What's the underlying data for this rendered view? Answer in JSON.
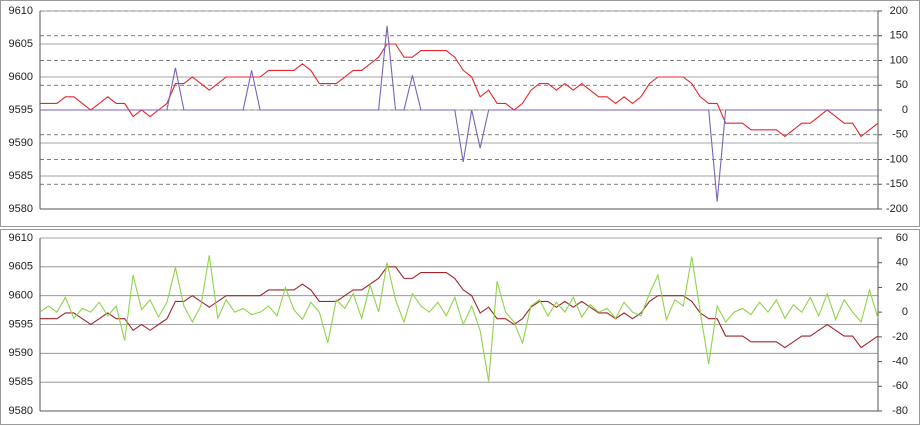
{
  "chart_data": [
    {
      "type": "line",
      "categories": [
        null,
        null,
        null,
        null,
        null,
        null,
        null,
        null,
        null,
        null,
        null,
        null,
        null,
        null,
        null,
        null,
        null,
        null,
        null,
        null,
        null,
        null,
        null,
        null,
        null,
        null,
        null,
        null,
        null,
        null,
        null,
        null,
        null,
        null,
        null,
        null,
        null,
        null,
        null,
        null,
        null,
        null,
        null,
        null,
        null,
        null,
        null,
        null,
        null,
        null,
        null,
        null,
        null,
        null,
        null,
        null,
        null,
        null,
        null,
        null,
        null,
        null,
        null,
        null,
        null,
        null,
        null,
        null,
        null,
        null,
        null,
        null,
        null,
        null,
        null,
        null,
        null,
        null,
        null,
        null,
        null,
        null,
        null,
        null,
        null,
        null,
        null,
        null,
        null,
        null,
        null,
        null,
        null,
        null,
        null,
        null,
        null,
        null,
        null,
        null
      ],
      "series": [
        {
          "color": "#e8262b",
          "values": [
            9596,
            9596,
            9596,
            9597,
            9597,
            9596,
            9595,
            9596,
            9597,
            9596,
            9596,
            9594,
            9595,
            9594,
            9595,
            9596,
            9599,
            9599,
            9600,
            9599,
            9598,
            9599,
            9600,
            9600,
            9600,
            9600,
            9600,
            9601,
            9601,
            9601,
            9601,
            9602,
            9601,
            9599,
            9599,
            9599,
            9600,
            9601,
            9601,
            9602,
            9603,
            9605,
            9605,
            9603,
            9603,
            9604,
            9604,
            9604,
            9604,
            9603,
            9601,
            9600,
            9597,
            9598,
            9596,
            9596,
            9595,
            9596,
            9598,
            9599,
            9599,
            9598,
            9599,
            9598,
            9599,
            9598,
            9597,
            9597,
            9596,
            9597,
            9596,
            9597,
            9599,
            9600,
            9600,
            9600,
            9600,
            9599,
            9597,
            9596,
            9596,
            9593,
            9593,
            9593,
            9592,
            9592,
            9592,
            9592,
            9591,
            9592,
            9593,
            9593,
            9594,
            9595,
            9594,
            9593,
            9593,
            9591,
            9592,
            9593
          ]
        },
        {
          "color": "#7b62b8",
          "axis": "y2",
          "values": [
            0,
            0,
            0,
            0,
            0,
            0,
            0,
            0,
            0,
            0,
            0,
            0,
            0,
            0,
            0,
            0,
            85,
            0,
            0,
            0,
            0,
            0,
            0,
            0,
            0,
            80,
            0,
            0,
            0,
            0,
            0,
            0,
            0,
            0,
            0,
            0,
            0,
            0,
            0,
            0,
            0,
            170,
            0,
            0,
            70,
            0,
            0,
            0,
            0,
            0,
            -105,
            0,
            -77,
            0,
            0,
            0,
            0,
            0,
            0,
            0,
            0,
            0,
            0,
            0,
            0,
            0,
            0,
            0,
            0,
            0,
            0,
            0,
            0,
            0,
            0,
            0,
            0,
            0,
            0,
            0,
            -185,
            0,
            0,
            0,
            0,
            0,
            0,
            0,
            0,
            0,
            0,
            0,
            0,
            0,
            0,
            0,
            0,
            0,
            0,
            0
          ]
        }
      ],
      "ylim": [
        9580,
        9610
      ],
      "yticks": [
        9580,
        9585,
        9590,
        9595,
        9600,
        9605,
        9610
      ],
      "y2lim": [
        -200,
        200
      ],
      "y2ticks": [
        -200,
        -150,
        -100,
        -50,
        0,
        50,
        100,
        150,
        200
      ],
      "grid": true,
      "y2grid": true
    },
    {
      "type": "line",
      "categories": [
        null,
        null,
        null,
        null,
        null,
        null,
        null,
        null,
        null,
        null,
        null,
        null,
        null,
        null,
        null,
        null,
        null,
        null,
        null,
        null,
        null,
        null,
        null,
        null,
        null,
        null,
        null,
        null,
        null,
        null,
        null,
        null,
        null,
        null,
        null,
        null,
        null,
        null,
        null,
        null,
        null,
        null,
        null,
        null,
        null,
        null,
        null,
        null,
        null,
        null,
        null,
        null,
        null,
        null,
        null,
        null,
        null,
        null,
        null,
        null,
        null,
        null,
        null,
        null,
        null,
        null,
        null,
        null,
        null,
        null,
        null,
        null,
        null,
        null,
        null,
        null,
        null,
        null,
        null,
        null,
        null,
        null,
        null,
        null,
        null,
        null,
        null,
        null,
        null,
        null,
        null,
        null,
        null,
        null,
        null,
        null,
        null,
        null,
        null,
        null
      ],
      "series": [
        {
          "color": "#a0262b",
          "values": [
            9596,
            9596,
            9596,
            9597,
            9597,
            9596,
            9595,
            9596,
            9597,
            9596,
            9596,
            9594,
            9595,
            9594,
            9595,
            9596,
            9599,
            9599,
            9600,
            9599,
            9598,
            9599,
            9600,
            9600,
            9600,
            9600,
            9600,
            9601,
            9601,
            9601,
            9601,
            9602,
            9601,
            9599,
            9599,
            9599,
            9600,
            9601,
            9601,
            9602,
            9603,
            9605,
            9605,
            9603,
            9603,
            9604,
            9604,
            9604,
            9604,
            9603,
            9601,
            9600,
            9597,
            9598,
            9596,
            9596,
            9595,
            9596,
            9598,
            9599,
            9599,
            9598,
            9599,
            9598,
            9599,
            9598,
            9597,
            9597,
            9596,
            9597,
            9596,
            9597,
            9599,
            9600,
            9600,
            9600,
            9600,
            9599,
            9597,
            9596,
            9596,
            9593,
            9593,
            9593,
            9592,
            9592,
            9592,
            9592,
            9591,
            9592,
            9593,
            9593,
            9594,
            9595,
            9594,
            9593,
            9593,
            9591,
            9592,
            9593
          ]
        },
        {
          "color": "#8fd44a",
          "axis": "y2",
          "values": [
            0,
            5,
            0,
            12,
            -5,
            3,
            0,
            8,
            -3,
            5,
            -23,
            30,
            2,
            10,
            -4,
            8,
            36,
            5,
            -8,
            5,
            46,
            -5,
            10,
            0,
            3,
            -2,
            0,
            5,
            -3,
            20,
            2,
            -6,
            8,
            0,
            -25,
            10,
            3,
            15,
            -5,
            22,
            0,
            40,
            10,
            -8,
            15,
            5,
            0,
            8,
            -3,
            12,
            -10,
            5,
            -15,
            -56,
            25,
            0,
            -8,
            -25,
            5,
            10,
            -3,
            8,
            0,
            12,
            -4,
            6,
            0,
            3,
            -5,
            8,
            0,
            -3,
            15,
            30,
            -6,
            10,
            5,
            45,
            0,
            -42,
            5,
            -8,
            0,
            3,
            -2,
            8,
            0,
            10,
            -5,
            6,
            0,
            12,
            -3,
            15,
            -6,
            10,
            0,
            -8,
            18,
            -5
          ]
        }
      ],
      "ylim": [
        9580,
        9610
      ],
      "yticks": [
        9580,
        9585,
        9590,
        9595,
        9600,
        9605,
        9610
      ],
      "y2lim": [
        -80,
        60
      ],
      "y2ticks": [
        -80,
        -60,
        -40,
        -20,
        0,
        20,
        40,
        60
      ],
      "grid": true,
      "y2grid": false
    }
  ]
}
